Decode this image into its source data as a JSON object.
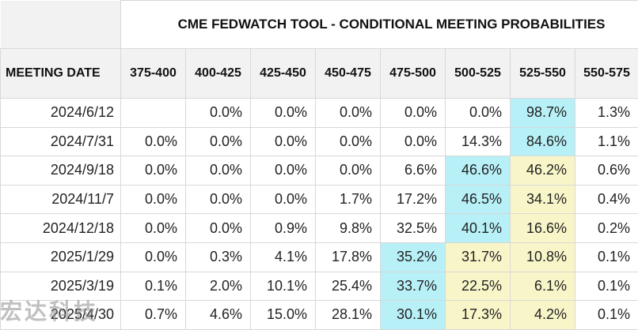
{
  "title": "CME FEDWATCH TOOL - CONDITIONAL MEETING PROBABILITIES",
  "header_first": "MEETING DATE",
  "ranges": [
    "375-400",
    "400-425",
    "425-450",
    "450-475",
    "475-500",
    "500-525",
    "525-550",
    "550-575"
  ],
  "highlight_colors": {
    "cyan": "#b7f0f7",
    "yellow": "#f8f6c8"
  },
  "rows": [
    {
      "date": "2024/6/12",
      "values": [
        "",
        "0.0%",
        "0.0%",
        "0.0%",
        "0.0%",
        "0.0%",
        "98.7%",
        "1.3%"
      ],
      "hl": [
        "",
        "",
        "",
        "",
        "",
        "",
        "cyan",
        ""
      ]
    },
    {
      "date": "2024/7/31",
      "values": [
        "0.0%",
        "0.0%",
        "0.0%",
        "0.0%",
        "0.0%",
        "14.3%",
        "84.6%",
        "1.1%"
      ],
      "hl": [
        "",
        "",
        "",
        "",
        "",
        "",
        "cyan",
        ""
      ]
    },
    {
      "date": "2024/9/18",
      "values": [
        "0.0%",
        "0.0%",
        "0.0%",
        "0.0%",
        "6.6%",
        "46.6%",
        "46.2%",
        "0.6%"
      ],
      "hl": [
        "",
        "",
        "",
        "",
        "",
        "cyan",
        "yellow",
        ""
      ]
    },
    {
      "date": "2024/11/7",
      "values": [
        "0.0%",
        "0.0%",
        "0.0%",
        "1.7%",
        "17.2%",
        "46.5%",
        "34.1%",
        "0.4%"
      ],
      "hl": [
        "",
        "",
        "",
        "",
        "",
        "cyan",
        "yellow",
        ""
      ]
    },
    {
      "date": "2024/12/18",
      "values": [
        "0.0%",
        "0.0%",
        "0.9%",
        "9.8%",
        "32.5%",
        "40.1%",
        "16.6%",
        "0.2%"
      ],
      "hl": [
        "",
        "",
        "",
        "",
        "",
        "cyan",
        "yellow",
        ""
      ]
    },
    {
      "date": "2025/1/29",
      "values": [
        "0.0%",
        "0.3%",
        "4.1%",
        "17.8%",
        "35.2%",
        "31.7%",
        "10.8%",
        "0.1%"
      ],
      "hl": [
        "",
        "",
        "",
        "",
        "cyan",
        "yellow",
        "yellow",
        ""
      ]
    },
    {
      "date": "2025/3/19",
      "values": [
        "0.1%",
        "2.0%",
        "10.1%",
        "25.4%",
        "33.7%",
        "22.5%",
        "6.1%",
        "0.1%"
      ],
      "hl": [
        "",
        "",
        "",
        "",
        "cyan",
        "yellow",
        "yellow",
        ""
      ]
    },
    {
      "date": "2025/4/30",
      "values": [
        "0.7%",
        "4.6%",
        "15.0%",
        "28.1%",
        "30.1%",
        "17.3%",
        "4.2%",
        "0.1%"
      ],
      "hl": [
        "",
        "",
        "",
        "",
        "cyan",
        "yellow",
        "yellow",
        ""
      ]
    }
  ],
  "watermark": "宏达科技"
}
